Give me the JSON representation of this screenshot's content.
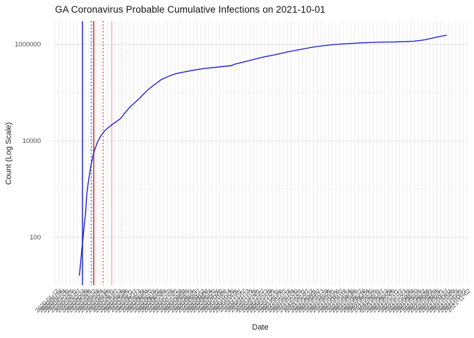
{
  "title": "GA Coronavirus Probable Cumulative Infections on 2021-10-01",
  "chart_data": {
    "type": "line",
    "title": "GA Coronavirus Probable Cumulative Infections on 2021-10-01",
    "xlabel": "Date",
    "ylabel": "Count (Log Scale)",
    "y_scale": "log10",
    "grid": true,
    "legend": "none",
    "y_ticks": [
      {
        "value": 100,
        "label": "100"
      },
      {
        "value": 10000,
        "label": "10000"
      },
      {
        "value": 1000000,
        "label": "1000000"
      }
    ],
    "y_minor_gridlines": [
      1000,
      100000
    ],
    "ylim": [
      10,
      3000000
    ],
    "x_axis_range": [
      "2020-01-12",
      "2021-11-02"
    ],
    "x_tick_labels": [
      "2020-01-12",
      "2020-01-18",
      "2020-01-24",
      "2020-01-30",
      "2020-02-05",
      "2020-02-11",
      "2020-02-17",
      "2020-02-23",
      "2020-02-29",
      "2020-03-06",
      "2020-03-12",
      "2020-03-18",
      "2020-03-24",
      "2020-03-30",
      "2020-04-05",
      "2020-04-11",
      "2020-04-17",
      "2020-04-23",
      "2020-04-29",
      "2020-05-05",
      "2020-05-11",
      "2020-05-17",
      "2020-05-23",
      "2020-05-29",
      "2020-06-04",
      "2020-06-10",
      "2020-06-16",
      "2020-06-22",
      "2020-06-28",
      "2020-07-04",
      "2020-07-10",
      "2020-07-16",
      "2020-07-22",
      "2020-07-28",
      "2020-08-03",
      "2020-08-09",
      "2020-08-15",
      "2020-08-21",
      "2020-08-27",
      "2020-09-02",
      "2020-09-08",
      "2020-09-14",
      "2020-09-20",
      "2020-09-26",
      "2020-10-02",
      "2020-10-08",
      "2020-10-14",
      "2020-10-20",
      "2020-10-26",
      "2020-11-01",
      "2020-11-07",
      "2020-11-13",
      "2020-11-19",
      "2020-11-25",
      "2020-12-01",
      "2020-12-07",
      "2020-12-13",
      "2020-12-19",
      "2020-12-25",
      "2020-12-31",
      "2021-01-06",
      "2021-01-12",
      "2021-01-18",
      "2021-01-24",
      "2021-01-30",
      "2021-02-05",
      "2021-02-11",
      "2021-02-17",
      "2021-02-23",
      "2021-03-01",
      "2021-03-07",
      "2021-03-13",
      "2021-03-19",
      "2021-03-25",
      "2021-03-31",
      "2021-04-06",
      "2021-04-12",
      "2021-04-18",
      "2021-04-24",
      "2021-04-30",
      "2021-05-06",
      "2021-05-12",
      "2021-05-18",
      "2021-05-24",
      "2021-05-30",
      "2021-06-05",
      "2021-06-11",
      "2021-06-17",
      "2021-06-23",
      "2021-06-29",
      "2021-07-05",
      "2021-07-11",
      "2021-07-17",
      "2021-07-23",
      "2021-07-29",
      "2021-08-04",
      "2021-08-10",
      "2021-08-16",
      "2021-08-22",
      "2021-08-28",
      "2021-09-03",
      "2021-09-09",
      "2021-09-15",
      "2021-09-21",
      "2021-09-27",
      "2021-10-03",
      "2021-10-09",
      "2021-10-15",
      "2021-10-21",
      "2021-10-27",
      "2021-11-02"
    ],
    "vlines": [
      {
        "date": "2020-02-25",
        "color": "#2a2ad0",
        "style": "solid"
      },
      {
        "date": "2020-03-10",
        "color": "#2a2ad0",
        "style": "dotted"
      },
      {
        "date": "2020-03-14",
        "color": "#e02424",
        "style": "solid"
      },
      {
        "date": "2020-03-29",
        "color": "#e02424",
        "style": "dotted"
      },
      {
        "date": "2020-04-12",
        "color": "#f9b6c3",
        "style": "solid"
      },
      {
        "date": "2020-04-26",
        "color": "#fbd2da",
        "style": "dotted"
      }
    ],
    "series": [
      {
        "name": "Probable cumulative infections",
        "color": "#1414cc",
        "points": [
          [
            "2020-02-20",
            16
          ],
          [
            "2020-02-21",
            22
          ],
          [
            "2020-02-22",
            30
          ],
          [
            "2020-02-24",
            55
          ],
          [
            "2020-02-26",
            100
          ],
          [
            "2020-02-28",
            190
          ],
          [
            "2020-03-01",
            320
          ],
          [
            "2020-03-03",
            800
          ],
          [
            "2020-03-05",
            1300
          ],
          [
            "2020-03-07",
            1900
          ],
          [
            "2020-03-09",
            2800
          ],
          [
            "2020-03-11",
            3800
          ],
          [
            "2020-03-13",
            5000
          ],
          [
            "2020-03-15",
            6200
          ],
          [
            "2020-03-17",
            7300
          ],
          [
            "2020-03-19",
            8700
          ],
          [
            "2020-03-21",
            10000
          ],
          [
            "2020-03-24",
            11800
          ],
          [
            "2020-03-27",
            13500
          ],
          [
            "2020-03-31",
            15800
          ],
          [
            "2020-04-05",
            18200
          ],
          [
            "2020-04-12",
            21500
          ],
          [
            "2020-04-20",
            25500
          ],
          [
            "2020-04-26",
            29000
          ],
          [
            "2020-05-03",
            38000
          ],
          [
            "2020-05-11",
            50000
          ],
          [
            "2020-05-20",
            64000
          ],
          [
            "2020-05-28",
            80000
          ],
          [
            "2020-06-08",
            112000
          ],
          [
            "2020-06-19",
            145000
          ],
          [
            "2020-06-30",
            185000
          ],
          [
            "2020-07-12",
            218000
          ],
          [
            "2020-07-23",
            245000
          ],
          [
            "2020-08-03",
            263000
          ],
          [
            "2020-08-20",
            290000
          ],
          [
            "2020-09-06",
            315000
          ],
          [
            "2020-09-28",
            338000
          ],
          [
            "2020-10-21",
            362000
          ],
          [
            "2020-10-25",
            385000
          ],
          [
            "2020-11-07",
            425000
          ],
          [
            "2020-11-24",
            480000
          ],
          [
            "2020-12-10",
            545000
          ],
          [
            "2020-12-31",
            615000
          ],
          [
            "2021-01-19",
            700000
          ],
          [
            "2021-02-07",
            780000
          ],
          [
            "2021-02-27",
            870000
          ],
          [
            "2021-03-16",
            935000
          ],
          [
            "2021-04-02",
            985000
          ],
          [
            "2021-04-22",
            1030000
          ],
          [
            "2021-05-11",
            1065000
          ],
          [
            "2021-05-30",
            1090000
          ],
          [
            "2021-06-19",
            1110000
          ],
          [
            "2021-07-06",
            1120000
          ],
          [
            "2021-07-25",
            1135000
          ],
          [
            "2021-08-09",
            1165000
          ],
          [
            "2021-08-26",
            1240000
          ],
          [
            "2021-09-09",
            1360000
          ],
          [
            "2021-09-21",
            1470000
          ],
          [
            "2021-10-01",
            1550000
          ]
        ]
      }
    ],
    "colors": {
      "grid_vertical": "#ececec",
      "grid_major": "#e2e2e2",
      "grid_minor": "#f1f1f1",
      "tick_text": "#4a4a4a",
      "series_line": "#1414cc"
    }
  }
}
